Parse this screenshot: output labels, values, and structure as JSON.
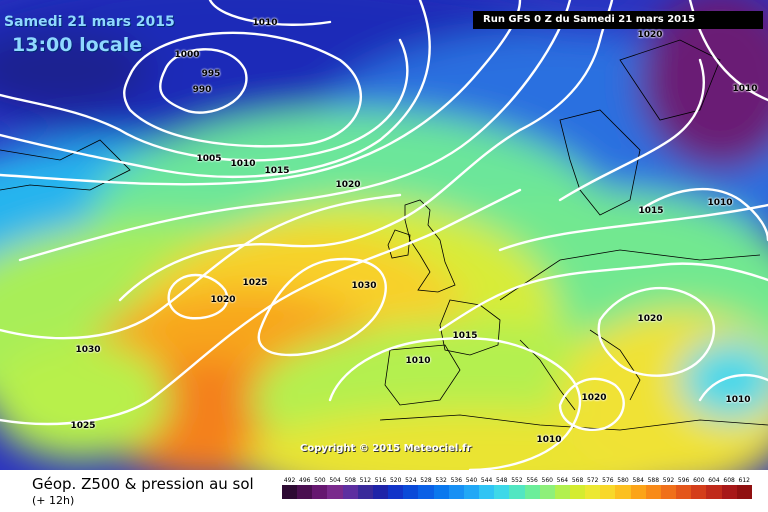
{
  "header": {
    "date": "Samedi 21 mars 2015",
    "time": "13:00 locale",
    "run": "Run GFS 0 Z du Samedi 21 mars 2015"
  },
  "copyright": "Copyright © 2015 Meteociel.fr",
  "footer": {
    "title": "Géop. Z500 & pression au sol",
    "subtitle": "(+ 12h)"
  },
  "isobar_labels": [
    "1010",
    "1020",
    "1000",
    "995",
    "990",
    "1010",
    "1005",
    "1010",
    "1015",
    "1020",
    "1015",
    "1010",
    "1025",
    "1020",
    "1030",
    "1030",
    "1015",
    "1010",
    "1020",
    "1020",
    "1010",
    "1010",
    "1025"
  ],
  "scale": {
    "values": [
      "492",
      "496",
      "500",
      "504",
      "508",
      "512",
      "516",
      "520",
      "524",
      "528",
      "532",
      "536",
      "540",
      "544",
      "548",
      "552",
      "556",
      "560",
      "564",
      "568",
      "572",
      "576",
      "580",
      "584",
      "588",
      "592",
      "596",
      "600",
      "604",
      "608",
      "612"
    ],
    "colors": [
      "#2d0a33",
      "#4a0f50",
      "#661870",
      "#7a2a8c",
      "#5d2fa0",
      "#3a2a9a",
      "#1f24a8",
      "#1234c8",
      "#0a4ad8",
      "#0a60e6",
      "#0a78ee",
      "#1890f4",
      "#22a8f6",
      "#30c4f4",
      "#3ed8e8",
      "#52e6c2",
      "#6cee9a",
      "#8ef07a",
      "#b2f04e",
      "#d4ec30",
      "#ece832",
      "#f8d82a",
      "#fcc020",
      "#fca418",
      "#f88a18",
      "#f0701a",
      "#e4561a",
      "#d43e1a",
      "#c02a1a",
      "#a81818",
      "#901010"
    ]
  }
}
